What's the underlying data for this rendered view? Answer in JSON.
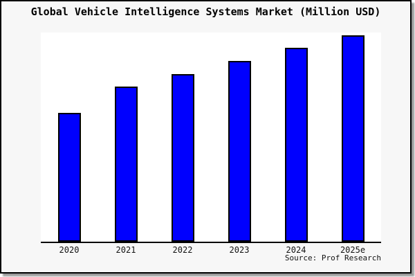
{
  "chart_data": {
    "type": "bar",
    "title": "Global Vehicle Intelligence Systems Market (Million USD)",
    "categories": [
      "2020",
      "2021",
      "2022",
      "2023",
      "2024",
      "2025e"
    ],
    "values": [
      100,
      120,
      130,
      140,
      150,
      160
    ],
    "values_note": "y-axis has no tick labels; values are relative units estimated from bar heights (ratio 1.0 : 1.2 : 1.3 : 1.4 : 1.5 : 1.6)",
    "xlabel": "",
    "ylabel": "",
    "ylim": [
      0,
      162
    ],
    "grid": false,
    "legend": false,
    "bar_color": "#0000fe",
    "bar_edge_color": "#000000",
    "source": "Source: Prof Research"
  }
}
